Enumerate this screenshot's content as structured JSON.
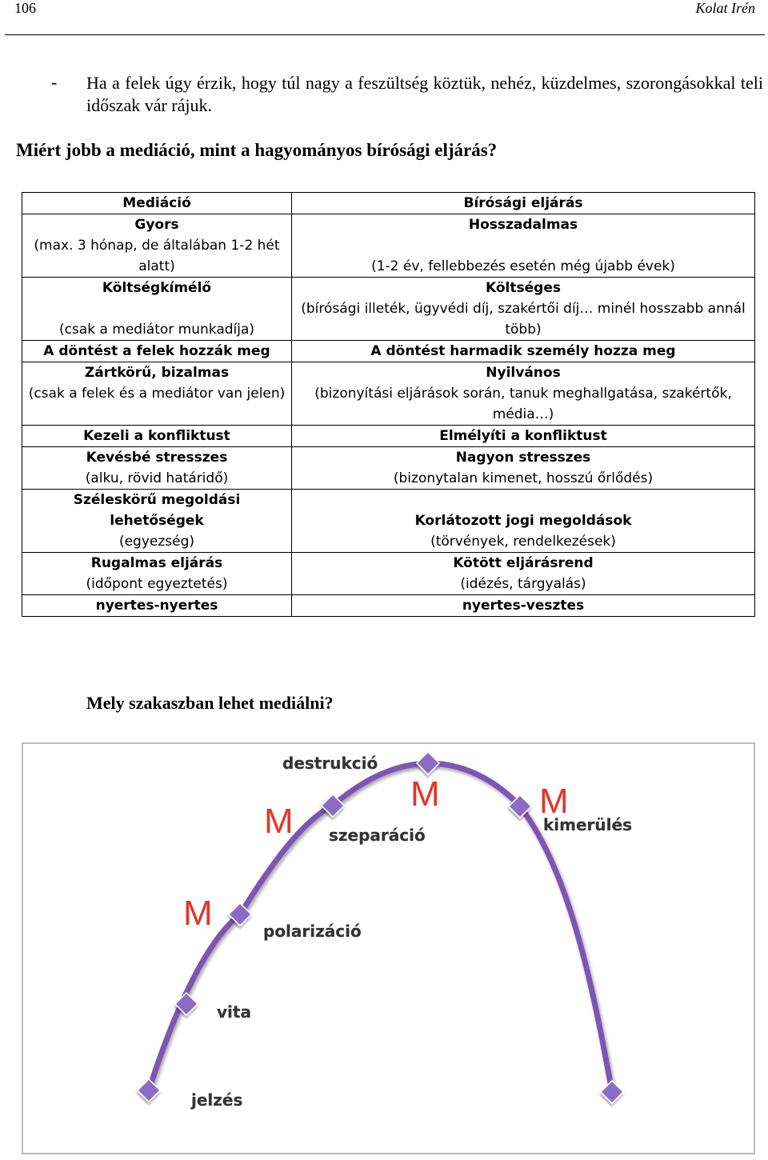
{
  "header": {
    "page_number": "106",
    "author": "Kolat Irén"
  },
  "bullet": {
    "dash": "-",
    "text": "Ha a felek úgy érzik, hogy túl nagy a feszültség köztük, nehéz, küzdelmes, szorongásokkal teli időszak vár rájuk."
  },
  "question1": "Miért jobb a mediáció, mint a hagyományos bírósági eljárás?",
  "table": {
    "head_left": "Mediáció",
    "head_right": "Bírósági eljárás",
    "rows": [
      {
        "l_title": "Gyors",
        "l_sub": "(max. 3 hónap, de általában 1-2 hét alatt)",
        "r_title": "Hosszadalmas",
        "r_sub": "(1-2 év, fellebbezés esetén még újabb évek)"
      },
      {
        "l_title": "Költségkímélő",
        "l_sub": "(csak a mediátor munkadíja)",
        "r_title": "Költséges",
        "r_sub": "(bírósági illeték, ügyvédi díj, szakértői díj… minél hosszabb annál több)"
      },
      {
        "l_title": "A döntést a felek hozzák meg",
        "l_sub": "",
        "r_title": "A döntést harmadik személy hozza meg",
        "r_sub": ""
      },
      {
        "l_title": "Zártkörű, bizalmas",
        "l_sub": "(csak a felek és a mediátor van jelen)",
        "r_title": "Nyilvános",
        "r_sub": "(bizonyítási eljárások során, tanuk meghallgatása, szakértők, média…)"
      },
      {
        "l_title": "Kezeli a konfliktust",
        "l_sub": "",
        "r_title": "Elmélyíti a konfliktust",
        "r_sub": ""
      },
      {
        "l_title": "Kevésbé stresszes",
        "l_sub": "(alku, rövid határidő)",
        "r_title": "Nagyon stresszes",
        "r_sub": "(bizonytalan kimenet, hosszú őrlődés)"
      },
      {
        "l_title": "Széleskörű megoldási lehetőségek",
        "l_sub": "(egyezség)",
        "r_title": "Korlátozott jogi megoldások",
        "r_sub": "(törvények, rendelkezések)"
      },
      {
        "l_title": "Rugalmas eljárás",
        "l_sub": "(időpont egyeztetés)",
        "r_title": "Kötött eljárásrend",
        "r_sub": "(idézés, tárgyalás)"
      },
      {
        "l_title": "nyertes-nyertes",
        "l_sub": "",
        "r_title": "nyertes-vesztes",
        "r_sub": ""
      }
    ]
  },
  "question2": "Mely szakaszban lehet mediálni?",
  "diagram": {
    "curve_color": "#7b56b3",
    "marker_color": "#8a6cc4",
    "m_color": "#e5352b",
    "stages": {
      "jelzes": "jelzés",
      "vita": "vita",
      "polarizacio": "polarizáció",
      "szeparacio": "szeparáció",
      "destrukcio": "destrukció",
      "kimerules": "kimerülés"
    },
    "mediation_mark": "M"
  }
}
